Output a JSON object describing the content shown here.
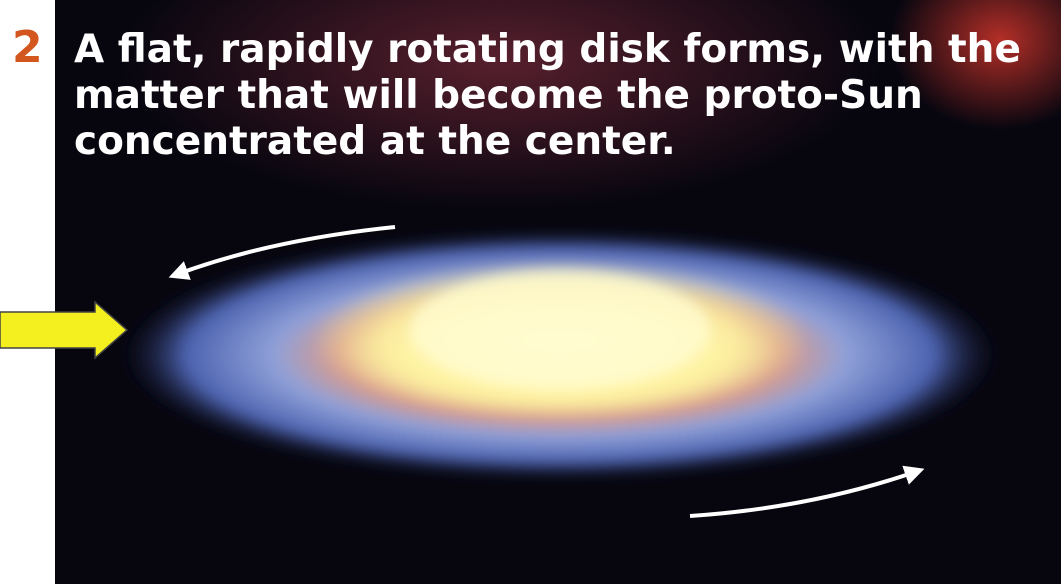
{
  "step": "2",
  "caption": [
    "A flat, rapidly rotating disk forms, with the",
    "matter that will become the proto-Sun",
    "concentrated at the center."
  ]
}
